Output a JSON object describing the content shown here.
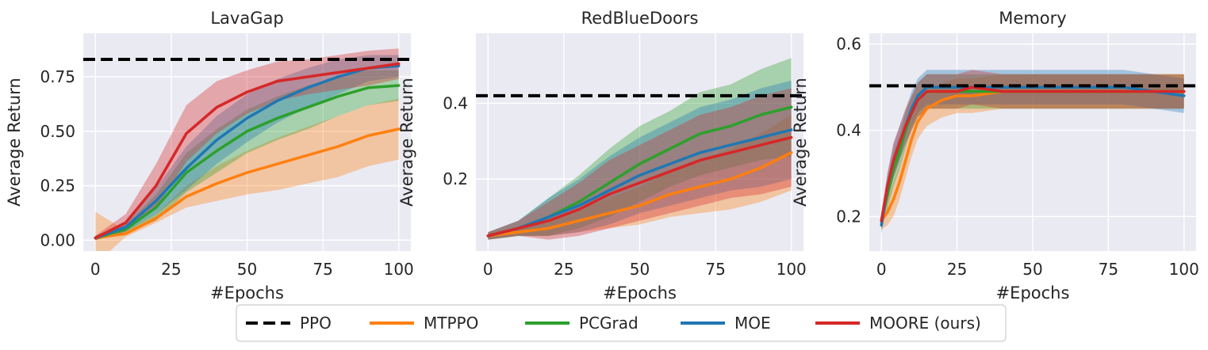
{
  "figure": {
    "legend": {
      "position": "bottom-center"
    }
  },
  "series_styles": {
    "PPO": {
      "color": "#000000",
      "dashed": true
    },
    "MTPPO": {
      "color": "#ff7f0e"
    },
    "PCGrad": {
      "color": "#2ca02c"
    },
    "MOE": {
      "color": "#1f77b4"
    },
    "MOORE (ours)": {
      "color": "#d62728"
    }
  },
  "legend": [
    "PPO",
    "MTPPO",
    "PCGrad",
    "MOE",
    "MOORE (ours)"
  ],
  "chart_data": [
    {
      "type": "line",
      "title": "LavaGap",
      "xlabel": "#Epochs",
      "ylabel": "Average Return",
      "xlim": [
        -4,
        104
      ],
      "ylim": [
        -0.05,
        0.95
      ],
      "xticks": [
        0,
        25,
        50,
        75,
        100
      ],
      "xtick_labels": [
        "0",
        "25",
        "50",
        "75",
        "100"
      ],
      "yticks": [
        0.0,
        0.25,
        0.5,
        0.75
      ],
      "ytick_labels": [
        "0.00",
        "0.25",
        "0.50",
        "0.75"
      ],
      "grid": true,
      "hlines": [
        {
          "name": "PPO",
          "y": 0.83
        }
      ],
      "x": [
        0,
        10,
        20,
        30,
        40,
        50,
        60,
        70,
        80,
        90,
        100
      ],
      "series": [
        {
          "name": "MTPPO",
          "values": [
            0.01,
            0.03,
            0.1,
            0.2,
            0.26,
            0.31,
            0.35,
            0.39,
            0.43,
            0.48,
            0.51
          ],
          "band": [
            0.12,
            0.015,
            0.02,
            0.05,
            0.08,
            0.1,
            0.12,
            0.13,
            0.14,
            0.14,
            0.14
          ]
        },
        {
          "name": "PCGrad",
          "values": [
            0.01,
            0.05,
            0.15,
            0.31,
            0.41,
            0.5,
            0.56,
            0.61,
            0.66,
            0.7,
            0.71
          ],
          "band": [
            0.01,
            0.02,
            0.06,
            0.09,
            0.1,
            0.1,
            0.1,
            0.1,
            0.09,
            0.08,
            0.07
          ]
        },
        {
          "name": "MOE",
          "values": [
            0.01,
            0.06,
            0.18,
            0.33,
            0.46,
            0.56,
            0.64,
            0.7,
            0.75,
            0.79,
            0.8
          ],
          "band": [
            0.01,
            0.02,
            0.06,
            0.1,
            0.11,
            0.11,
            0.1,
            0.09,
            0.08,
            0.06,
            0.05
          ]
        },
        {
          "name": "MOORE (ours)",
          "values": [
            0.01,
            0.08,
            0.25,
            0.49,
            0.61,
            0.68,
            0.73,
            0.75,
            0.77,
            0.79,
            0.81
          ],
          "band": [
            0.01,
            0.04,
            0.1,
            0.13,
            0.12,
            0.1,
            0.09,
            0.08,
            0.08,
            0.08,
            0.07
          ]
        }
      ]
    },
    {
      "type": "line",
      "title": "RedBlueDoors",
      "xlabel": "#Epochs",
      "ylabel": "Average Return",
      "xlim": [
        -4,
        104
      ],
      "ylim": [
        0.01,
        0.585
      ],
      "xticks": [
        0,
        25,
        50,
        75,
        100
      ],
      "xtick_labels": [
        "0",
        "25",
        "50",
        "75",
        "100"
      ],
      "yticks": [
        0.2,
        0.4
      ],
      "ytick_labels": [
        "0.2",
        "0.4"
      ],
      "grid": true,
      "hlines": [
        {
          "name": "PPO",
          "y": 0.42
        }
      ],
      "x": [
        0,
        10,
        20,
        30,
        40,
        50,
        60,
        70,
        80,
        90,
        100
      ],
      "series": [
        {
          "name": "MTPPO",
          "values": [
            0.05,
            0.06,
            0.07,
            0.09,
            0.11,
            0.13,
            0.16,
            0.18,
            0.2,
            0.23,
            0.27
          ],
          "band": [
            0.01,
            0.01,
            0.02,
            0.03,
            0.04,
            0.05,
            0.06,
            0.07,
            0.08,
            0.09,
            0.1
          ]
        },
        {
          "name": "PCGrad",
          "values": [
            0.05,
            0.07,
            0.1,
            0.14,
            0.19,
            0.24,
            0.28,
            0.32,
            0.34,
            0.37,
            0.39
          ],
          "band": [
            0.01,
            0.02,
            0.05,
            0.07,
            0.09,
            0.1,
            0.1,
            0.11,
            0.11,
            0.12,
            0.13
          ]
        },
        {
          "name": "MOE",
          "values": [
            0.05,
            0.07,
            0.1,
            0.13,
            0.17,
            0.21,
            0.24,
            0.27,
            0.29,
            0.31,
            0.33
          ],
          "band": [
            0.01,
            0.02,
            0.05,
            0.07,
            0.09,
            0.1,
            0.11,
            0.12,
            0.12,
            0.13,
            0.13
          ]
        },
        {
          "name": "MOORE (ours)",
          "values": [
            0.05,
            0.07,
            0.09,
            0.12,
            0.16,
            0.19,
            0.22,
            0.25,
            0.27,
            0.29,
            0.31
          ],
          "band": [
            0.01,
            0.02,
            0.05,
            0.07,
            0.09,
            0.1,
            0.11,
            0.12,
            0.12,
            0.13,
            0.13
          ]
        }
      ]
    },
    {
      "type": "line",
      "title": "Memory",
      "xlabel": "#Epochs",
      "ylabel": "Average Return",
      "xlim": [
        -4,
        104
      ],
      "ylim": [
        0.12,
        0.625
      ],
      "xticks": [
        0,
        25,
        50,
        75,
        100
      ],
      "xtick_labels": [
        "0",
        "25",
        "50",
        "75",
        "100"
      ],
      "yticks": [
        0.2,
        0.4,
        0.6
      ],
      "ytick_labels": [
        "0.2",
        "0.4",
        "0.6"
      ],
      "grid": true,
      "hlines": [
        {
          "name": "PPO",
          "y": 0.503
        }
      ],
      "x": [
        0,
        2,
        4,
        6,
        8,
        10,
        12,
        15,
        20,
        25,
        30,
        40,
        50,
        60,
        70,
        80,
        90,
        100
      ],
      "series": [
        {
          "name": "MTPPO",
          "values": [
            0.19,
            0.21,
            0.24,
            0.28,
            0.33,
            0.38,
            0.42,
            0.45,
            0.47,
            0.48,
            0.48,
            0.49,
            0.49,
            0.49,
            0.49,
            0.49,
            0.49,
            0.49
          ],
          "band": [
            0.02,
            0.03,
            0.04,
            0.04,
            0.04,
            0.04,
            0.04,
            0.04,
            0.04,
            0.04,
            0.04,
            0.04,
            0.04,
            0.04,
            0.04,
            0.04,
            0.04,
            0.04
          ]
        },
        {
          "name": "PCGrad",
          "values": [
            0.19,
            0.25,
            0.31,
            0.35,
            0.4,
            0.44,
            0.47,
            0.49,
            0.49,
            0.49,
            0.49,
            0.49,
            0.49,
            0.49,
            0.49,
            0.49,
            0.49,
            0.49
          ],
          "band": [
            0.02,
            0.03,
            0.04,
            0.04,
            0.04,
            0.04,
            0.04,
            0.04,
            0.04,
            0.04,
            0.04,
            0.04,
            0.04,
            0.04,
            0.04,
            0.04,
            0.04,
            0.04
          ]
        },
        {
          "name": "MOE",
          "values": [
            0.18,
            0.27,
            0.33,
            0.37,
            0.41,
            0.45,
            0.48,
            0.5,
            0.5,
            0.5,
            0.5,
            0.5,
            0.5,
            0.5,
            0.5,
            0.5,
            0.49,
            0.48
          ],
          "band": [
            0.02,
            0.03,
            0.04,
            0.04,
            0.04,
            0.04,
            0.04,
            0.04,
            0.04,
            0.04,
            0.04,
            0.04,
            0.04,
            0.04,
            0.04,
            0.04,
            0.04,
            0.04
          ]
        },
        {
          "name": "MOORE (ours)",
          "values": [
            0.19,
            0.27,
            0.33,
            0.37,
            0.41,
            0.44,
            0.47,
            0.49,
            0.49,
            0.49,
            0.5,
            0.49,
            0.49,
            0.49,
            0.49,
            0.49,
            0.49,
            0.49
          ],
          "band": [
            0.02,
            0.03,
            0.04,
            0.04,
            0.04,
            0.04,
            0.04,
            0.04,
            0.04,
            0.04,
            0.04,
            0.04,
            0.04,
            0.04,
            0.04,
            0.04,
            0.04,
            0.04
          ]
        }
      ]
    }
  ]
}
